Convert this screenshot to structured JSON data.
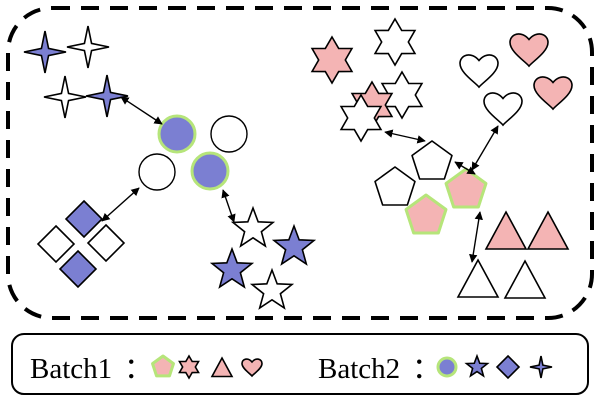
{
  "colors": {
    "batch1_fill": "#f4b4b4",
    "batch2_fill": "#7b7fd2",
    "empty_fill": "#ffffff",
    "pentagon_border": "#b6e57a",
    "circle_border": "#b6e57a",
    "stroke": "#000000"
  },
  "legend": {
    "batch1": {
      "label": "Batch1",
      "separator": "：",
      "icons": [
        "pentagon-icon",
        "hexagram-icon",
        "triangle-icon",
        "heart-icon"
      ]
    },
    "batch2": {
      "label": "Batch2",
      "separator": "：",
      "icons": [
        "circle-icon",
        "star-icon",
        "diamond-icon",
        "four-point-star-icon"
      ]
    }
  },
  "clusters": [
    {
      "shape": "four-point-star",
      "filled": [
        true,
        false,
        false,
        true
      ]
    },
    {
      "shape": "circle",
      "filled": [
        true,
        false,
        false,
        true
      ]
    },
    {
      "shape": "diamond",
      "filled": [
        true,
        false,
        false,
        true
      ]
    },
    {
      "shape": "star",
      "filled": [
        false,
        true,
        true,
        false
      ]
    },
    {
      "shape": "hexagram",
      "filled": [
        true,
        false,
        false,
        true,
        false
      ]
    },
    {
      "shape": "pentagon",
      "filled": [
        false,
        false,
        true,
        true
      ]
    },
    {
      "shape": "heart",
      "filled": [
        false,
        true,
        true,
        false
      ]
    },
    {
      "shape": "triangle",
      "filled": [
        true,
        true,
        false,
        false
      ]
    }
  ]
}
